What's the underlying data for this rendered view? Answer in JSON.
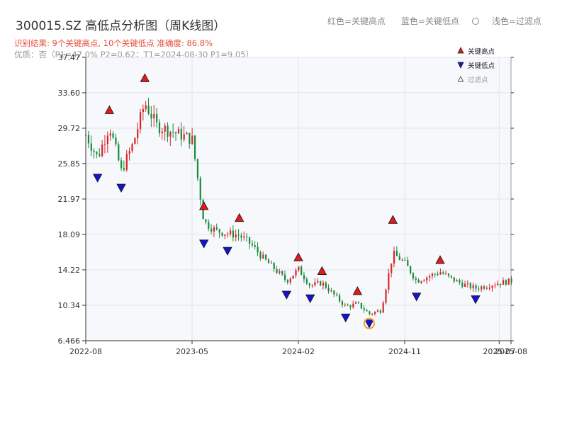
{
  "header": {
    "title": "300015.SZ 高低点分析图（周K线图）",
    "result_line": "识别结果: 9个关键高点, 10个关键低点  准确度: 86.8%",
    "quality_line": "优质：否（P1=47.0%  P2=0.62；T1=2024-08-30 P1=9.05）"
  },
  "top_legend": {
    "red": "红色=关键高点",
    "blue": "蓝色=关键低点",
    "light": "浅色=过滤点"
  },
  "colors": {
    "up": "#d62728",
    "down": "#1a8a3c",
    "high_marker": "#e31a1c",
    "low_marker": "#1515d0",
    "filtered_ring": "#f0a030",
    "plot_bg": "#f6f8fb",
    "grid": "#e0e4ea"
  },
  "chart_data": {
    "type": "candlestick",
    "y_ticks": [
      "37.47",
      "33.60",
      "29.72",
      "25.85",
      "21.97",
      "18.09",
      "14.22",
      "10.34",
      "6.466"
    ],
    "x_ticks": [
      "2022-08",
      "2023-05",
      "2024-02",
      "2024-11",
      "2025-07",
      "2025-08"
    ],
    "ylim": [
      6.466,
      37.47
    ],
    "x_range": [
      "2022-08",
      "2025-08"
    ],
    "grid": true,
    "legend_placement": "top-right",
    "legend": [
      {
        "label": "关键高点",
        "marker": "high"
      },
      {
        "label": "关键低点",
        "marker": "low"
      },
      {
        "label": "过滤点",
        "marker": "filtered"
      }
    ],
    "key_highs": [
      {
        "date": "2022-10",
        "value": 31.0
      },
      {
        "date": "2023-01",
        "value": 34.5
      },
      {
        "date": "2023-06",
        "value": 20.5
      },
      {
        "date": "2023-09",
        "value": 19.2
      },
      {
        "date": "2024-02",
        "value": 14.9
      },
      {
        "date": "2024-04",
        "value": 13.4
      },
      {
        "date": "2024-07",
        "value": 11.2
      },
      {
        "date": "2024-10",
        "value": 19.0
      },
      {
        "date": "2025-02",
        "value": 14.6
      }
    ],
    "key_lows": [
      {
        "date": "2022-09",
        "value": 25.0
      },
      {
        "date": "2022-11",
        "value": 23.9
      },
      {
        "date": "2023-06",
        "value": 17.8
      },
      {
        "date": "2023-08",
        "value": 17.0
      },
      {
        "date": "2024-01",
        "value": 12.2
      },
      {
        "date": "2024-03",
        "value": 11.8
      },
      {
        "date": "2024-06",
        "value": 9.7
      },
      {
        "date": "2024-08",
        "value": 9.05
      },
      {
        "date": "2024-12",
        "value": 12.0
      },
      {
        "date": "2025-05",
        "value": 11.7
      }
    ],
    "filtered_points": [
      {
        "date": "2024-08",
        "value": 9.05
      }
    ],
    "close_path": [
      [
        "2022-08",
        29.0
      ],
      [
        "2022-09",
        26.5
      ],
      [
        "2022-10",
        30.0
      ],
      [
        "2022-11",
        25.0
      ],
      [
        "2022-12",
        28.0
      ],
      [
        "2023-01",
        32.5
      ],
      [
        "2023-02",
        30.0
      ],
      [
        "2023-03",
        29.5
      ],
      [
        "2023-04",
        29.0
      ],
      [
        "2023-05",
        28.5
      ],
      [
        "2023-06",
        19.5
      ],
      [
        "2023-07",
        18.5
      ],
      [
        "2023-08",
        18.2
      ],
      [
        "2023-09",
        18.0
      ],
      [
        "2023-10",
        17.0
      ],
      [
        "2023-11",
        15.5
      ],
      [
        "2023-12",
        14.3
      ],
      [
        "2024-01",
        13.0
      ],
      [
        "2024-02",
        14.3
      ],
      [
        "2024-03",
        12.5
      ],
      [
        "2024-04",
        12.8
      ],
      [
        "2024-05",
        11.5
      ],
      [
        "2024-06",
        10.2
      ],
      [
        "2024-07",
        10.5
      ],
      [
        "2024-08",
        9.4
      ],
      [
        "2024-09",
        9.8
      ],
      [
        "2024-10",
        16.0
      ],
      [
        "2024-11",
        15.0
      ],
      [
        "2024-12",
        13.0
      ],
      [
        "2025-01",
        13.5
      ],
      [
        "2025-02",
        14.0
      ],
      [
        "2025-03",
        13.2
      ],
      [
        "2025-04",
        12.6
      ],
      [
        "2025-05",
        12.2
      ],
      [
        "2025-06",
        12.5
      ],
      [
        "2025-07",
        12.8
      ],
      [
        "2025-08",
        13.0
      ]
    ]
  }
}
